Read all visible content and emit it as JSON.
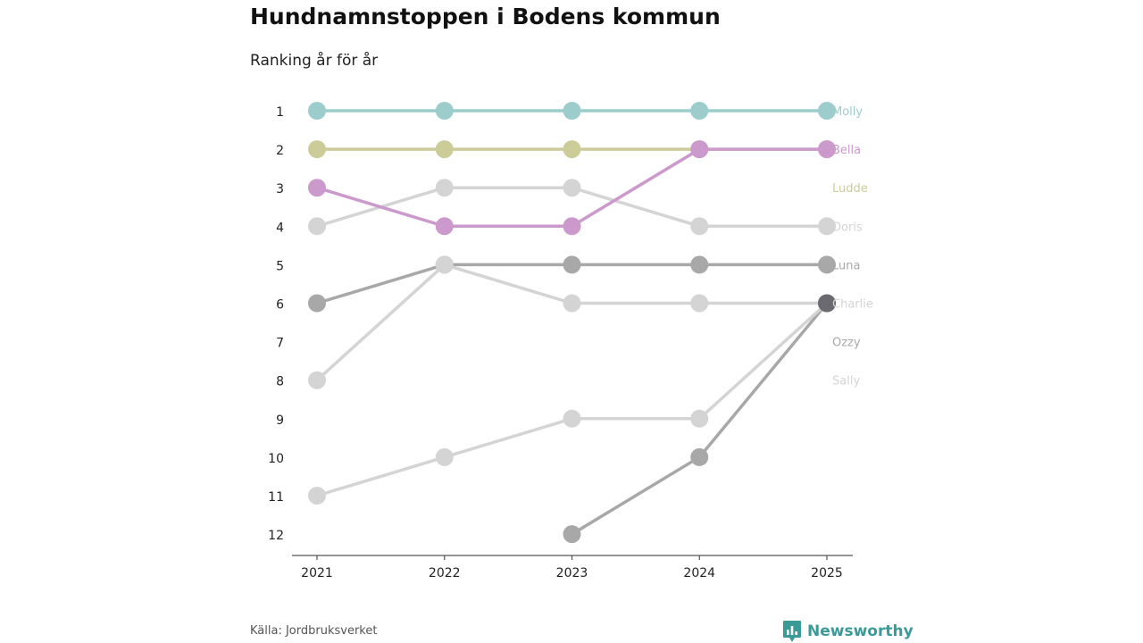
{
  "chart_data": {
    "type": "line",
    "subtype": "bump",
    "title": "Hundnamnstoppen i Bodens kommun",
    "subtitle": "Ranking år för år",
    "xlabel": "",
    "ylabel": "",
    "x": [
      "2021",
      "2022",
      "2023",
      "2024",
      "2025"
    ],
    "rank_ticks": [
      "1",
      "2",
      "3",
      "4",
      "5",
      "6",
      "7",
      "8",
      "9",
      "10",
      "11",
      "12"
    ],
    "ylim": [
      1,
      12
    ],
    "y_inverted": true,
    "grid": false,
    "series": [
      {
        "name": "Molly",
        "color": "#9ccdcc",
        "values": [
          1,
          1,
          1,
          1,
          1
        ],
        "label_rank": 1
      },
      {
        "name": "Bella",
        "color": "#cc99cc",
        "values": [
          3,
          4,
          4,
          2,
          2
        ],
        "label_rank": 2
      },
      {
        "name": "Ludde",
        "color": "#cccc99",
        "values": [
          2,
          2,
          2,
          2,
          2
        ],
        "label_rank": 3
      },
      {
        "name": "Doris",
        "color": "#d4d4d4",
        "values": [
          4,
          3,
          3,
          4,
          4
        ],
        "label_rank": 4
      },
      {
        "name": "Luna",
        "color": "#a8a8a8",
        "values": [
          6,
          5,
          5,
          5,
          5
        ],
        "label_rank": 5
      },
      {
        "name": "Charlie",
        "color": "#d4d4d4",
        "values": [
          8,
          5,
          6,
          6,
          6
        ],
        "label_rank": 6
      },
      {
        "name": "Ozzy",
        "color": "#a8a8a8",
        "values": [
          null,
          null,
          12,
          10,
          6
        ],
        "label_rank": 7
      },
      {
        "name": "Sally",
        "color": "#d4d4d4",
        "values": [
          11,
          10,
          9,
          9,
          6
        ],
        "label_rank": 8
      }
    ],
    "highlight_point": {
      "x": "2025",
      "rank": 6,
      "color": "#6a6a70"
    }
  },
  "footer": {
    "source": "Källa: Jordbruksverket",
    "brand": "Newsworthy",
    "brand_color": "#3a9a98"
  }
}
